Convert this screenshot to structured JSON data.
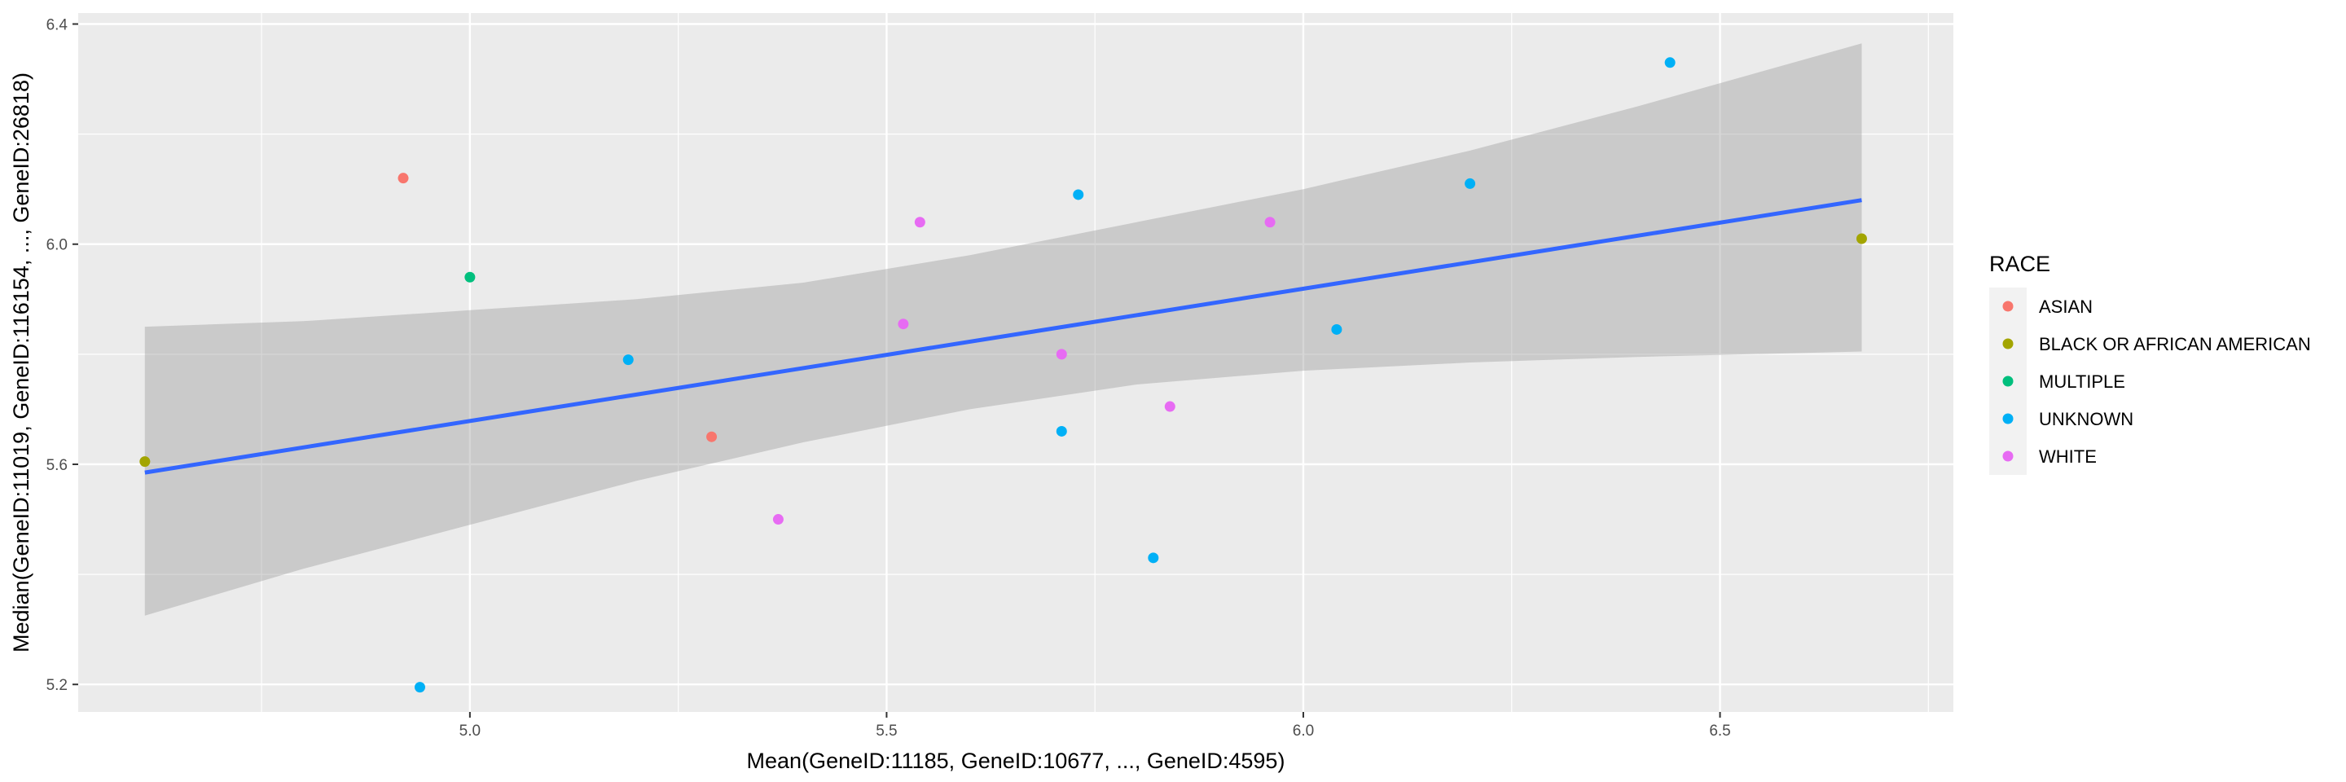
{
  "chart_data": {
    "type": "scatter",
    "xlabel": "Mean(GeneID:11185, GeneID:10677, ..., GeneID:4595)",
    "ylabel": "Median(GeneID:11019, GeneID:116154, ..., GeneID:26818)",
    "xlim": [
      4.53,
      6.78
    ],
    "ylim": [
      5.15,
      6.42
    ],
    "x_ticks": [
      "5.0",
      "5.5",
      "6.0",
      "6.5"
    ],
    "y_ticks": [
      "5.2",
      "5.6",
      "6.0",
      "6.4"
    ],
    "grid": true,
    "legend": {
      "title": "RACE",
      "placement": "right",
      "entries": [
        {
          "label": "ASIAN",
          "color": "#F8766D"
        },
        {
          "label": "BLACK OR AFRICAN AMERICAN",
          "color": "#A3A500"
        },
        {
          "label": "MULTIPLE",
          "color": "#00BF7D"
        },
        {
          "label": "UNKNOWN",
          "color": "#00B0F6"
        },
        {
          "label": "WHITE",
          "color": "#E76BF3"
        }
      ]
    },
    "series": [
      {
        "name": "ASIAN",
        "color": "#F8766D",
        "points": [
          [
            4.92,
            6.12
          ],
          [
            5.29,
            5.65
          ]
        ]
      },
      {
        "name": "BLACK OR AFRICAN AMERICAN",
        "color": "#A3A500",
        "points": [
          [
            4.61,
            5.605
          ],
          [
            6.67,
            6.01
          ]
        ]
      },
      {
        "name": "MULTIPLE",
        "color": "#00BF7D",
        "points": [
          [
            5.0,
            5.94
          ]
        ]
      },
      {
        "name": "UNKNOWN",
        "color": "#00B0F6",
        "points": [
          [
            4.94,
            5.195
          ],
          [
            5.19,
            5.79
          ],
          [
            5.71,
            5.66
          ],
          [
            5.73,
            6.09
          ],
          [
            5.82,
            5.43
          ],
          [
            6.04,
            5.845
          ],
          [
            6.2,
            6.11
          ],
          [
            6.44,
            6.33
          ]
        ]
      },
      {
        "name": "WHITE",
        "color": "#E76BF3",
        "points": [
          [
            5.37,
            5.5
          ],
          [
            5.52,
            5.855
          ],
          [
            5.54,
            6.04
          ],
          [
            5.71,
            5.8
          ],
          [
            5.84,
            5.705
          ],
          [
            5.96,
            6.04
          ]
        ]
      }
    ],
    "trend_line": {
      "color": "#3366FF",
      "x": [
        4.61,
        6.67
      ],
      "y": [
        5.585,
        6.08
      ],
      "confidence_band": {
        "x": [
          4.61,
          4.8,
          5.0,
          5.2,
          5.4,
          5.6,
          5.8,
          6.0,
          6.2,
          6.4,
          6.67
        ],
        "lower": [
          5.325,
          5.41,
          5.49,
          5.57,
          5.64,
          5.7,
          5.745,
          5.77,
          5.785,
          5.795,
          5.805
        ],
        "upper": [
          5.85,
          5.86,
          5.88,
          5.9,
          5.93,
          5.98,
          6.04,
          6.1,
          6.17,
          6.25,
          6.365
        ]
      }
    }
  }
}
